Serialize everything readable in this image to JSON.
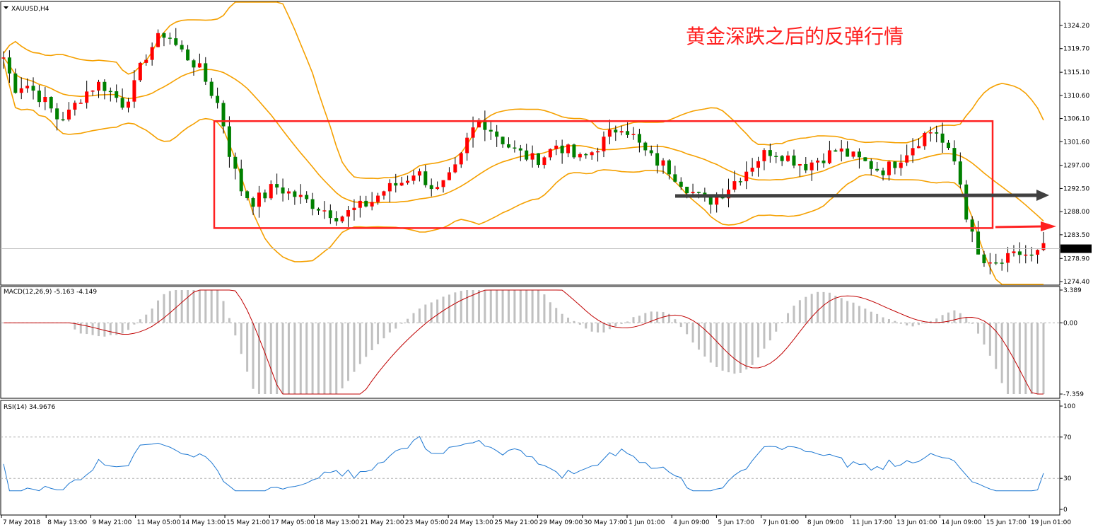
{
  "main_panel": {
    "symbol_label": "XAUUSD,H4",
    "annotation_text": "黄金深跌之后的反弹行情",
    "current_price_tag": "1280.79",
    "price_ticks": [
      "1324.20",
      "1319.70",
      "1315.10",
      "1310.60",
      "1306.10",
      "1301.60",
      "1297.00",
      "1292.50",
      "1288.00",
      "1283.50",
      "1278.90",
      "1274.40"
    ]
  },
  "macd_panel": {
    "label": "MACD(12,26,9) -5.163 -4.149",
    "ticks": [
      "3.389",
      "0.00",
      "-7.359"
    ]
  },
  "rsi_panel": {
    "label": "RSI(14) 34.9676",
    "ticks": [
      "100",
      "70",
      "30",
      "0"
    ]
  },
  "time_axis": {
    "labels": [
      "7 May 2018",
      "8 May 13:00",
      "9 May 21:00",
      "11 May 05:00",
      "14 May 13:00",
      "15 May 21:00",
      "17 May 05:00",
      "18 May 13:00",
      "21 May 21:00",
      "23 May 05:00",
      "24 May 13:00",
      "25 May 21:00",
      "29 May 09:00",
      "30 May 17:00",
      "1 Jun 01:00",
      "4 Jun 09:00",
      "5 Jun 17:00",
      "7 Jun 01:00",
      "8 Jun 09:00",
      "11 Jun 17:00",
      "13 Jun 01:00",
      "14 Jun 09:00",
      "15 Jun 17:00",
      "19 Jun 01:00"
    ]
  },
  "colors": {
    "bull_candle": "#ff0000",
    "bear_candle": "#008000",
    "bollinger": "#f5a000",
    "box": "#ff2020",
    "macd_signal": "#c00000",
    "macd_hist": "#c0c0c0",
    "rsi_line": "#1e78d2",
    "grey_arrow": "#404040",
    "red_arrow": "#ff2020"
  },
  "chart_data": {
    "type": "candlestick",
    "symbol": "XAUUSD",
    "timeframe": "H4",
    "price_range": [
      1274.4,
      1324.2
    ],
    "last_price": 1280.79,
    "close_path": [
      1318,
      1312,
      1313,
      1311,
      1309,
      1306,
      1307,
      1310,
      1312,
      1313,
      1311,
      1309,
      1312,
      1318,
      1321,
      1323,
      1320,
      1318,
      1316,
      1312,
      1308,
      1298,
      1292,
      1290,
      1291,
      1293,
      1292,
      1291,
      1290,
      1289,
      1288,
      1287,
      1288,
      1289,
      1290,
      1292,
      1293,
      1294,
      1296,
      1294,
      1292,
      1294,
      1297,
      1303,
      1306,
      1304,
      1302,
      1300,
      1299,
      1298,
      1299,
      1301,
      1300,
      1298,
      1299,
      1301,
      1303,
      1305,
      1303,
      1300,
      1298,
      1297,
      1295,
      1293,
      1291,
      1290,
      1291,
      1293,
      1295,
      1297,
      1299,
      1300,
      1299,
      1298,
      1297,
      1298,
      1299,
      1300,
      1299,
      1298,
      1297,
      1296,
      1297,
      1299,
      1301,
      1303,
      1304,
      1300,
      1297,
      1286,
      1279,
      1277,
      1278,
      1279,
      1280,
      1279,
      1280.79
    ],
    "box": {
      "top_price": 1305.6,
      "bottom_price": 1284.8
    },
    "macd": {
      "params": "12,26,9",
      "main": -5.163,
      "signal": -4.149,
      "range": [
        -7.359,
        3.389
      ]
    },
    "rsi": {
      "period": 14,
      "value": 34.9676,
      "levels": [
        70,
        30
      ]
    }
  }
}
